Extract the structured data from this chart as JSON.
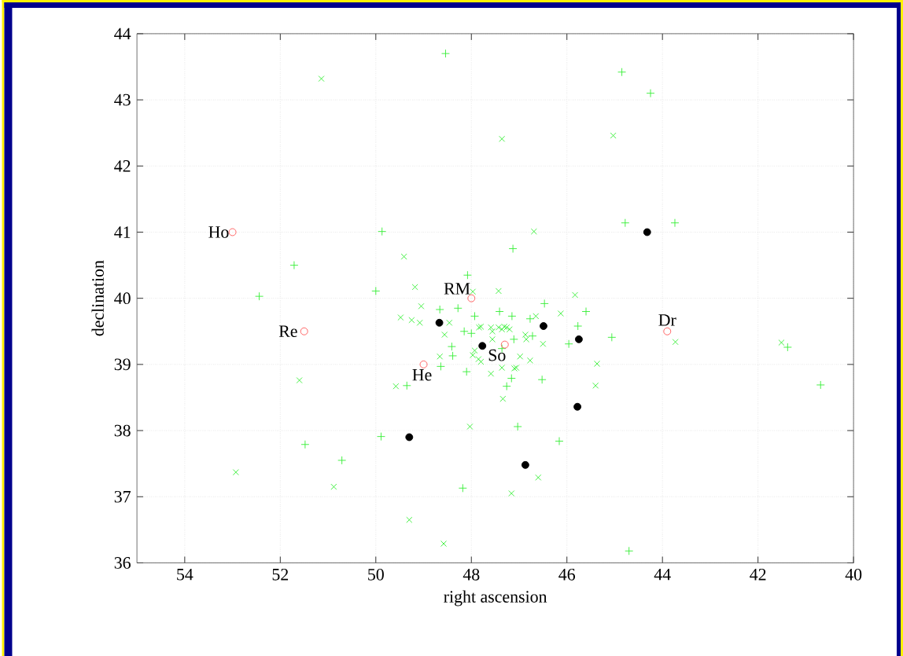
{
  "chart_data": {
    "type": "scatter",
    "xlabel": "right ascension",
    "ylabel": "declination",
    "xlim": [
      55,
      40
    ],
    "ylim": [
      36,
      44
    ],
    "xticks": [
      54,
      52,
      50,
      48,
      46,
      44,
      42,
      40
    ],
    "yticks": [
      36,
      37,
      38,
      39,
      40,
      41,
      42,
      43,
      44
    ],
    "grid": true,
    "series": [
      {
        "color": "#33ee33",
        "marker": "plus",
        "x": [
          48.54,
          49.87,
          51.71,
          52.44,
          50.0,
          48.08,
          44.85,
          44.25,
          44.78,
          43.74,
          47.13,
          51.48,
          50.71,
          49.89,
          48.18,
          49.35,
          48.66,
          48.28,
          47.93,
          48.15,
          48.41,
          48.39,
          48.64,
          48.1,
          48.0,
          46.47,
          45.6,
          45.77,
          45.06,
          45.96,
          41.38,
          40.69,
          46.52,
          47.03,
          46.16,
          44.7,
          47.15,
          46.77,
          46.72,
          47.11,
          47.16,
          47.26,
          47.41,
          47.36
        ],
        "values": [
          43.7,
          41.01,
          40.5,
          40.03,
          40.11,
          40.35,
          43.42,
          43.1,
          41.14,
          41.14,
          40.75,
          37.79,
          37.55,
          37.91,
          37.13,
          38.68,
          39.83,
          39.85,
          39.73,
          39.5,
          39.27,
          39.13,
          38.97,
          38.89,
          39.47,
          39.92,
          39.8,
          39.58,
          39.41,
          39.31,
          39.26,
          38.69,
          38.77,
          38.06,
          37.84,
          36.18,
          39.73,
          39.69,
          39.43,
          39.38,
          38.79,
          38.67,
          39.8,
          39.24
        ]
      },
      {
        "color": "#33ee33",
        "marker": "cross",
        "x": [
          51.14,
          49.41,
          49.18,
          47.97,
          47.36,
          45.03,
          46.69,
          45.83,
          47.43,
          51.6,
          52.93,
          50.88,
          49.3,
          48.58,
          48.03,
          49.58,
          49.48,
          49.25,
          49.08,
          49.05,
          48.46,
          48.56,
          48.66,
          47.8,
          47.97,
          47.8,
          47.56,
          47.34,
          46.6,
          47.16,
          46.13,
          46.5,
          45.37,
          45.4,
          43.73,
          41.51,
          46.65,
          46.85,
          46.98,
          46.77,
          47.06,
          47.36,
          47.36,
          47.2,
          47.31,
          47.84,
          47.59,
          47.43,
          47.26,
          47.56,
          47.93,
          47.85,
          46.87,
          47.59,
          47.1
        ],
        "values": [
          43.32,
          40.63,
          40.17,
          40.1,
          42.41,
          42.46,
          41.01,
          40.05,
          40.11,
          38.76,
          37.37,
          37.15,
          36.65,
          36.29,
          38.06,
          38.67,
          39.71,
          39.67,
          39.63,
          39.88,
          39.63,
          39.45,
          39.12,
          39.57,
          39.14,
          39.04,
          39.5,
          38.48,
          37.29,
          37.05,
          39.77,
          39.31,
          39.01,
          38.68,
          39.34,
          39.33,
          39.73,
          39.38,
          39.12,
          39.06,
          38.95,
          38.95,
          39.53,
          39.53,
          39.57,
          39.56,
          39.56,
          39.56,
          39.56,
          39.38,
          39.21,
          39.08,
          39.45,
          38.86,
          38.94
        ]
      },
      {
        "color": "#000000",
        "marker": "circle",
        "x": [
          48.67,
          47.77,
          46.49,
          45.75,
          44.32,
          45.78,
          49.3,
          46.87
        ],
        "values": [
          39.63,
          39.28,
          39.58,
          39.38,
          41.0,
          38.36,
          37.9,
          37.48
        ]
      },
      {
        "color": "#ff5555",
        "marker": "open circle",
        "x": [
          53.0,
          51.5,
          48.0,
          49.0,
          47.3,
          43.9
        ],
        "values": [
          41.0,
          39.5,
          40.0,
          39.0,
          39.3,
          39.5
        ]
      }
    ],
    "annotations": [
      {
        "text": "Ho",
        "x": 53.0,
        "y": 41.0
      },
      {
        "text": "Re",
        "x": 51.5,
        "y": 39.5
      },
      {
        "text": "RM",
        "x": 48.0,
        "y": 40.0
      },
      {
        "text": "He",
        "x": 49.0,
        "y": 39.0
      },
      {
        "text": "So",
        "x": 47.3,
        "y": 39.3
      },
      {
        "text": "Dr",
        "x": 43.9,
        "y": 39.5
      }
    ]
  }
}
